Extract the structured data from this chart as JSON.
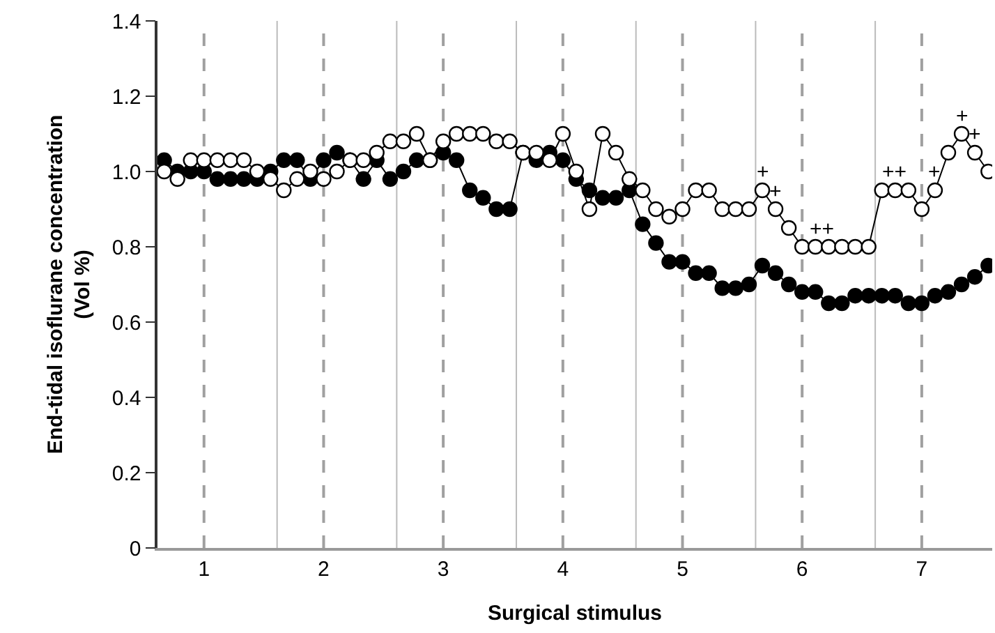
{
  "chart_data": {
    "type": "line",
    "xlabel": "Surgical stimulus",
    "ylabel": "End-tidal isoflurane concentration\n(Vol %)",
    "x": [
      0.667,
      0.778,
      0.889,
      1,
      1.111,
      1.222,
      1.333,
      1.444,
      1.556,
      1.667,
      1.778,
      1.889,
      2,
      2.111,
      2.222,
      2.333,
      2.444,
      2.556,
      2.667,
      2.778,
      2.889,
      3,
      3.111,
      3.222,
      3.333,
      3.444,
      3.556,
      3.667,
      3.778,
      3.889,
      4,
      4.111,
      4.222,
      4.333,
      4.444,
      4.556,
      4.667,
      4.778,
      4.889,
      5,
      5.111,
      5.222,
      5.333,
      5.444,
      5.556,
      5.667,
      5.778,
      5.889,
      6,
      6.111,
      6.222,
      6.333,
      6.444,
      6.556,
      6.667,
      6.778,
      6.889,
      7,
      7.111,
      7.222,
      7.333,
      7.444,
      7.556
    ],
    "series": [
      {
        "color": "#000000",
        "values": [
          1.03,
          1.0,
          1.0,
          1.0,
          0.98,
          0.98,
          0.98,
          0.98,
          1.0,
          1.03,
          1.03,
          0.98,
          1.03,
          1.05,
          1.03,
          0.98,
          1.03,
          0.98,
          1.0,
          1.03,
          1.03,
          1.05,
          1.03,
          0.95,
          0.93,
          0.9,
          0.9,
          1.05,
          1.03,
          1.05,
          1.03,
          0.98,
          0.95,
          0.93,
          0.93,
          0.95,
          0.86,
          0.81,
          0.76,
          0.76,
          0.73,
          0.73,
          0.69,
          0.69,
          0.7,
          0.75,
          0.73,
          0.7,
          0.68,
          0.68,
          0.65,
          0.65,
          0.67,
          0.67,
          0.67,
          0.67,
          0.65,
          0.65,
          0.67,
          0.68,
          0.7,
          0.72,
          0.75
        ]
      },
      {
        "color": "#ffffff",
        "values": [
          1.0,
          0.98,
          1.03,
          1.03,
          1.03,
          1.03,
          1.03,
          1.0,
          0.98,
          0.95,
          0.98,
          1.0,
          0.98,
          1.0,
          1.03,
          1.03,
          1.05,
          1.08,
          1.08,
          1.1,
          1.03,
          1.08,
          1.1,
          1.1,
          1.1,
          1.08,
          1.08,
          1.05,
          1.05,
          1.03,
          1.1,
          1.0,
          0.9,
          1.1,
          1.05,
          0.98,
          0.95,
          0.9,
          0.88,
          0.9,
          0.95,
          0.95,
          0.9,
          0.9,
          0.9,
          0.95,
          0.9,
          0.85,
          0.8,
          0.8,
          0.8,
          0.8,
          0.8,
          0.8,
          0.95,
          0.95,
          0.95,
          0.9,
          0.95,
          1.05,
          1.1,
          1.05,
          1.0
        ]
      }
    ],
    "annotations": [
      {
        "text": "+",
        "x": 5.667,
        "y": 0.95
      },
      {
        "text": "+",
        "x": 5.778,
        "y": 0.9
      },
      {
        "text": "++",
        "x": 6.167,
        "y": 0.8
      },
      {
        "text": "++",
        "x": 6.778,
        "y": 0.95
      },
      {
        "text": "+",
        "x": 7.111,
        "y": 0.95
      },
      {
        "text": "+",
        "x": 7.333,
        "y": 1.1
      },
      {
        "text": "+",
        "x": 7.444,
        "y": 1.05
      }
    ],
    "ref_lines": [
      {
        "axis": "x",
        "value": 1.611,
        "color": "#bbbbbb",
        "line_style": "solid"
      },
      {
        "axis": "x",
        "value": 2.611,
        "color": "#bbbbbb",
        "line_style": "solid"
      },
      {
        "axis": "x",
        "value": 3.611,
        "color": "#bbbbbb",
        "line_style": "solid"
      },
      {
        "axis": "x",
        "value": 4.611,
        "color": "#bbbbbb",
        "line_style": "solid"
      },
      {
        "axis": "x",
        "value": 5.611,
        "color": "#bbbbbb",
        "line_style": "solid"
      },
      {
        "axis": "x",
        "value": 6.611,
        "color": "#bbbbbb",
        "line_style": "solid"
      },
      {
        "axis": "x",
        "value": 1,
        "color": "#a0a0a0",
        "line_style": "dashed"
      },
      {
        "axis": "x",
        "value": 2,
        "color": "#a0a0a0",
        "line_style": "dashed"
      },
      {
        "axis": "x",
        "value": 3,
        "color": "#a0a0a0",
        "line_style": "dashed"
      },
      {
        "axis": "x",
        "value": 4,
        "color": "#a0a0a0",
        "line_style": "dashed"
      },
      {
        "axis": "x",
        "value": 5,
        "color": "#a0a0a0",
        "line_style": "dashed"
      },
      {
        "axis": "x",
        "value": 6,
        "color": "#a0a0a0",
        "line_style": "dashed"
      },
      {
        "axis": "x",
        "value": 7,
        "color": "#a0a0a0",
        "line_style": "dashed"
      }
    ],
    "xlim": [
      0.611,
      7.589
    ],
    "xticks": [
      1,
      2,
      3,
      4,
      5,
      6,
      7
    ],
    "ylim": [
      0,
      1.4
    ],
    "yticks": [
      0,
      0.2,
      0.4,
      0.6,
      0.8,
      {
        "value": 1.0,
        "label": "1.0"
      },
      1.2,
      1.4
    ],
    "grid": false,
    "marker": "circle",
    "line_style": "solid"
  }
}
